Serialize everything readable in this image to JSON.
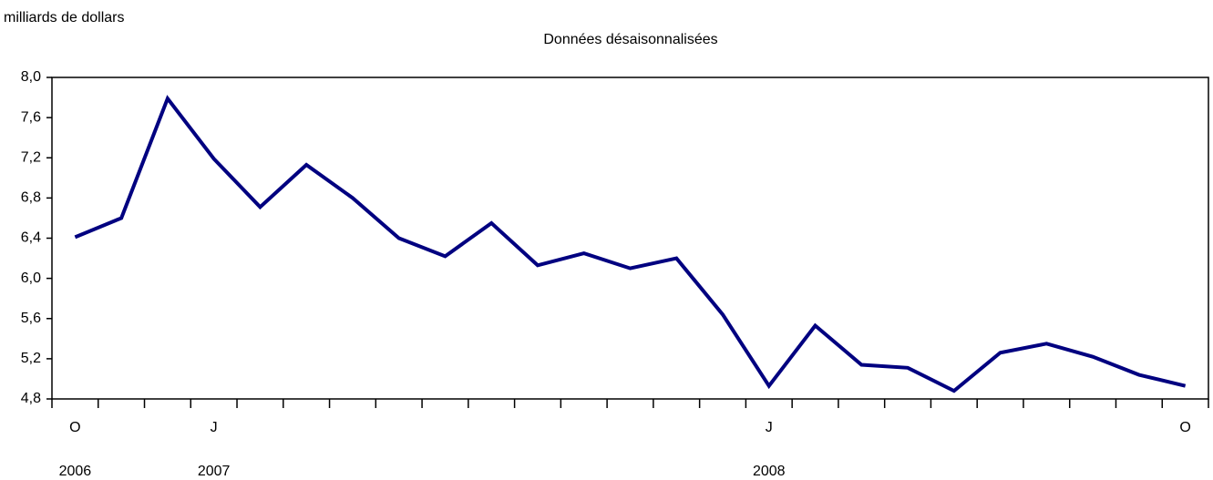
{
  "chart_data": {
    "type": "line",
    "y_label": "milliards de dollars",
    "subtitle": "Données désaisonnalisées",
    "categories": [
      "O",
      null,
      null,
      "J",
      null,
      null,
      null,
      null,
      null,
      null,
      null,
      null,
      null,
      null,
      null,
      "J",
      null,
      null,
      null,
      null,
      null,
      null,
      null,
      null,
      "O"
    ],
    "years": [
      "2006",
      null,
      null,
      "2007",
      null,
      null,
      null,
      null,
      null,
      null,
      null,
      null,
      null,
      null,
      null,
      "2008",
      null,
      null,
      null,
      null,
      null,
      null,
      null,
      null,
      null
    ],
    "series": [
      {
        "color": "#000080",
        "values": [
          6.41,
          6.6,
          7.79,
          7.19,
          6.71,
          7.13,
          6.8,
          6.4,
          6.22,
          6.55,
          6.13,
          6.25,
          6.1,
          6.2,
          5.64,
          4.93,
          5.53,
          5.14,
          5.11,
          4.88,
          5.26,
          5.35,
          5.22,
          5.04,
          4.93
        ]
      }
    ],
    "ylim": [
      4.8,
      8.0
    ],
    "yticks": [
      {
        "value": 4.8,
        "label": "4,8"
      },
      {
        "value": 5.2,
        "label": "5,2"
      },
      {
        "value": 5.6,
        "label": "5,6"
      },
      {
        "value": 6.0,
        "label": "6,0"
      },
      {
        "value": 6.4,
        "label": "6,4"
      },
      {
        "value": 6.8,
        "label": "6,8"
      },
      {
        "value": 7.2,
        "label": "7,2"
      },
      {
        "value": 7.6,
        "label": "7,6"
      },
      {
        "value": 8.0,
        "label": "8,0"
      }
    ]
  }
}
